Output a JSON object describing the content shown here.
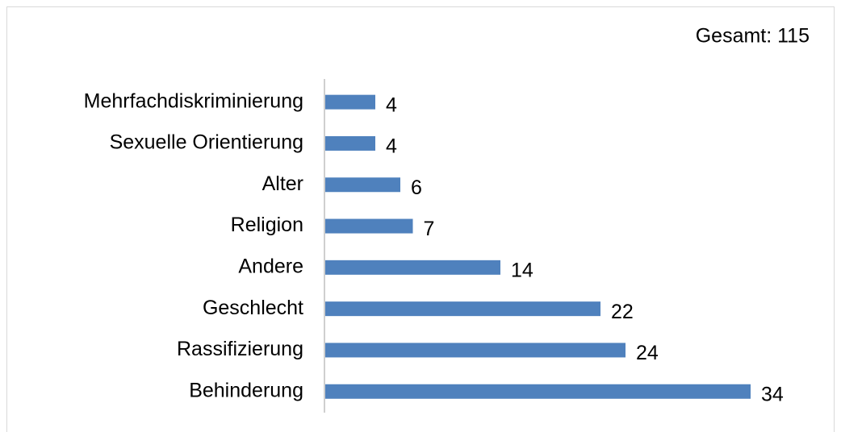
{
  "chart_data": {
    "type": "bar",
    "orientation": "horizontal",
    "annotation": "Gesamt: 115",
    "categories": [
      "Mehrfachdiskriminierung",
      "Sexuelle Orientierung",
      "Alter",
      "Religion",
      "Andere",
      "Geschlecht",
      "Rassifizierung",
      "Behinderung"
    ],
    "values": [
      4,
      4,
      6,
      7,
      14,
      22,
      24,
      34
    ],
    "color": "#4f81bd"
  }
}
